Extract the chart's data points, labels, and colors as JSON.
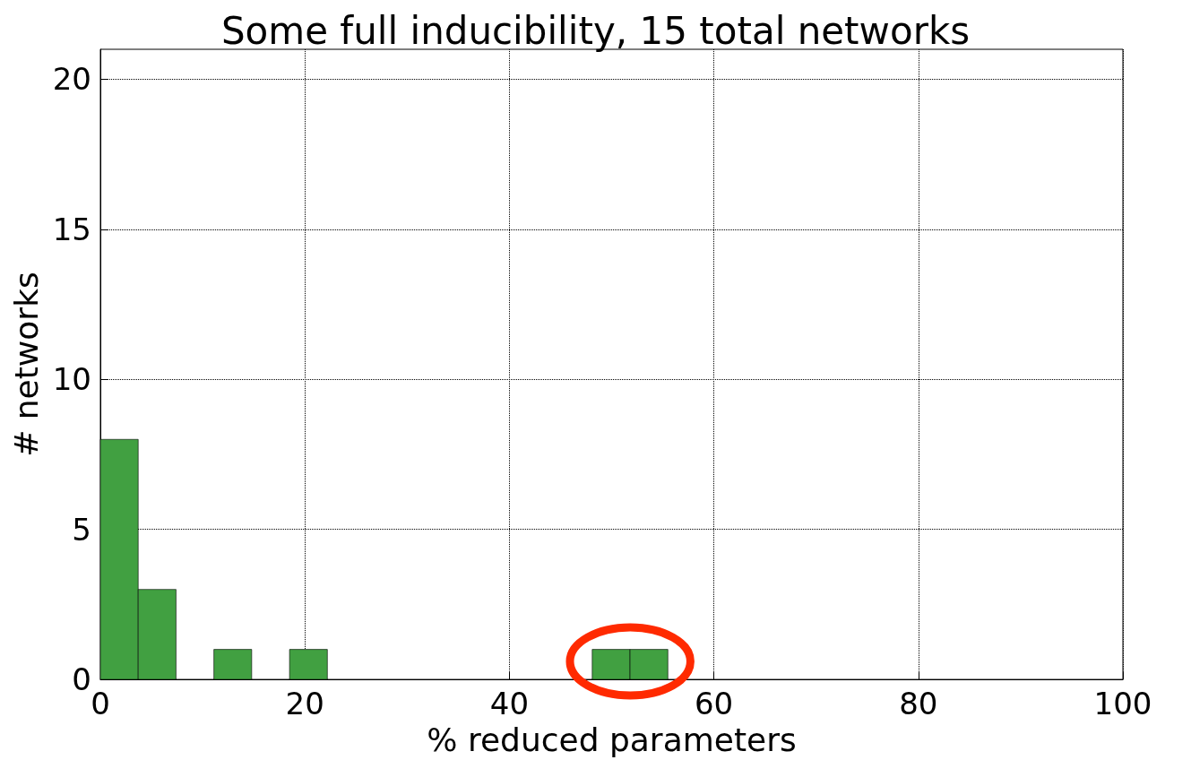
{
  "chart_data": {
    "type": "histogram",
    "title": "Some full inducibility, 15 total networks",
    "xlabel": "% reduced parameters",
    "ylabel": "# networks",
    "bins": [
      0,
      3.7,
      7.4,
      11.1,
      14.8,
      18.5,
      22.2,
      25.9,
      29.6,
      33.3,
      37,
      40.7,
      44.4,
      48.1,
      51.8,
      55.5
    ],
    "values": [
      8,
      3,
      0,
      1,
      0,
      1,
      0,
      0,
      0,
      0,
      0,
      0,
      0,
      1,
      1
    ],
    "color": "#41a041",
    "xlim": [
      0,
      100
    ],
    "xticks": [
      0,
      20,
      40,
      60,
      80,
      100
    ],
    "ylim": [
      0,
      21
    ],
    "yticks": [
      0,
      5,
      10,
      15,
      20
    ],
    "grid": true
  }
}
